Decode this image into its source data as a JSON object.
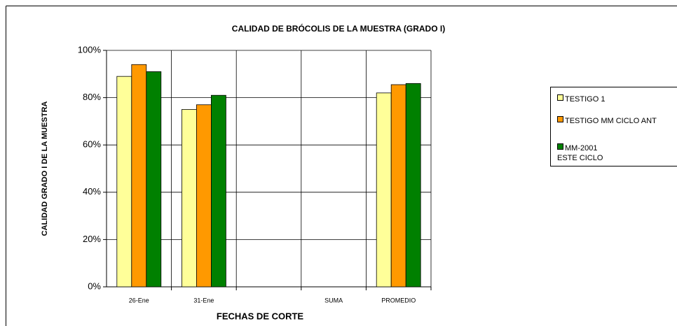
{
  "chart_data": {
    "type": "bar",
    "title": "CALIDAD DE BRÓCOLIS DE LA MUESTRA (GRADO I)",
    "x_label": "FECHAS DE CORTE",
    "y_label": "CALIDAD GRADO I DE LA MUESTRA",
    "categories": [
      "26-Ene",
      "31-Ene",
      null,
      "SUMA",
      "PROMEDIO"
    ],
    "series": [
      {
        "name": "TESTIGO 1",
        "color": "#ffff99",
        "values": [
          89,
          75,
          null,
          null,
          82
        ]
      },
      {
        "name": "TESTIGO MM CICLO ANT",
        "color": "#ff9900",
        "values": [
          94,
          77,
          null,
          null,
          85.5
        ]
      },
      {
        "name": "MM-2001\nESTE CICLO",
        "color": "#008000",
        "values": [
          91,
          81,
          null,
          null,
          86
        ]
      }
    ],
    "ylim": [
      0,
      100
    ],
    "yticks": [
      {
        "value": 0,
        "label": "0%"
      },
      {
        "value": 20,
        "label": "20%"
      },
      {
        "value": 40,
        "label": "40%"
      },
      {
        "value": 60,
        "label": "60%"
      },
      {
        "value": 80,
        "label": "80%"
      },
      {
        "value": 100,
        "label": "100%"
      }
    ],
    "grid": true,
    "legend": "right"
  }
}
